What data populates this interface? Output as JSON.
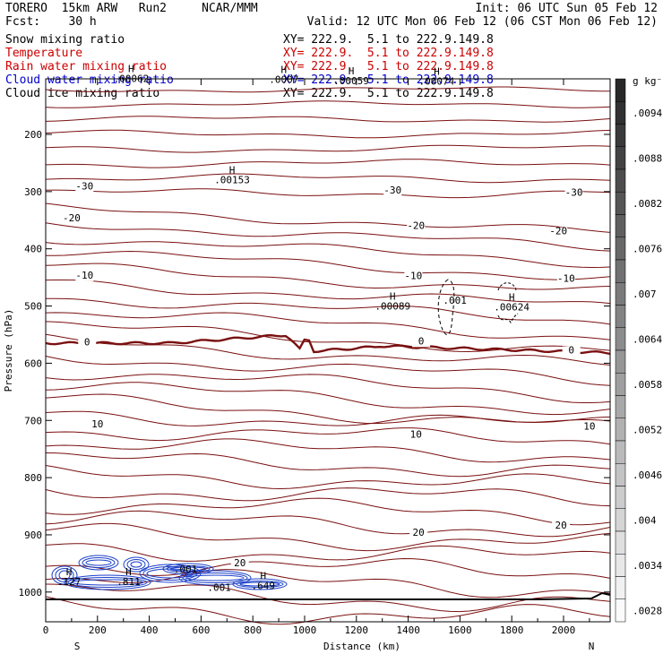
{
  "header": {
    "model": "TORERO  15km ARW   Run2     NCAR/MMM",
    "init": "Init: 06 UTC Sun 05 Feb 12",
    "fcst": "Fcst:    30 h",
    "valid": "Valid: 12 UTC Mon 06 Feb 12 (06 CST Mon 06 Feb 12)",
    "fields": [
      {
        "label": "Snow mixing ratio",
        "xy": "XY= 222.9.  5.1 to 222.9.149.8",
        "color": "#000000"
      },
      {
        "label": "Temperature",
        "xy": "XY= 222.9.  5.1 to 222.9.149.8",
        "color": "#cc0000"
      },
      {
        "label": "Rain water mixing ratio",
        "xy": "XY= 222.9.  5.1 to 222.9.149.8",
        "color": "#cc0000"
      },
      {
        "label": "Cloud water mixing ratio",
        "xy": "XY= 222.9.  5.1 to 222.9.149.8",
        "color": "#0000cc"
      },
      {
        "label": "Cloud ice mixing ratio",
        "xy": "XY= 222.9.  5.1 to 222.9.149.8",
        "color": "#000000"
      }
    ]
  },
  "chart_data": {
    "type": "contour",
    "xlabel": "Distance (km)",
    "ylabel": "Pressure (hPa)",
    "xlim": [
      0,
      2180
    ],
    "ylim": [
      1050,
      100
    ],
    "x_ticks": [
      0,
      200,
      400,
      600,
      800,
      1000,
      1200,
      1400,
      1600,
      1800,
      2000
    ],
    "y_ticks": [
      200,
      300,
      400,
      500,
      600,
      700,
      800,
      900,
      1000
    ],
    "x_end_labels": {
      "left": "S",
      "right": "N"
    },
    "temperature_labels": [
      {
        "text": "-30",
        "x": 150,
        "p": 296
      },
      {
        "text": "-30",
        "x": 1340,
        "p": 303
      },
      {
        "text": "-30",
        "x": 2040,
        "p": 307
      },
      {
        "text": "-20",
        "x": 100,
        "p": 352
      },
      {
        "text": "-20",
        "x": 1430,
        "p": 365
      },
      {
        "text": "-20",
        "x": 1980,
        "p": 375
      },
      {
        "text": "-10",
        "x": 150,
        "p": 452
      },
      {
        "text": "-10",
        "x": 1420,
        "p": 453
      },
      {
        "text": "-10",
        "x": 2010,
        "p": 458
      },
      {
        "text": "0",
        "x": 160,
        "p": 569
      },
      {
        "text": "0",
        "x": 1450,
        "p": 567
      },
      {
        "text": "0",
        "x": 2030,
        "p": 583
      },
      {
        "text": "10",
        "x": 200,
        "p": 712
      },
      {
        "text": "10",
        "x": 1430,
        "p": 730
      },
      {
        "text": "10",
        "x": 2100,
        "p": 716
      },
      {
        "text": "20",
        "x": 750,
        "p": 955
      },
      {
        "text": "20",
        "x": 1440,
        "p": 902
      },
      {
        "text": "20",
        "x": 1990,
        "p": 889
      }
    ],
    "extrema": [
      {
        "text": "H",
        "value": ".00062",
        "x": 330,
        "p": 108
      },
      {
        "text": "H",
        "value": ".0007",
        "x": 920,
        "p": 110
      },
      {
        "text": "H",
        "value": ".00059",
        "x": 1180,
        "p": 112
      },
      {
        "text": "H",
        "value": ".00074",
        "x": 1510,
        "p": 113
      },
      {
        "text": "H",
        "value": ".00153",
        "x": 720,
        "p": 285
      },
      {
        "text": "H",
        "value": ".00089",
        "x": 1340,
        "p": 506
      },
      {
        "text": "",
        "value": ".001",
        "x": 1580,
        "p": 496
      },
      {
        "text": "H",
        "value": ".00624",
        "x": 1800,
        "p": 508
      },
      {
        "text": "",
        "value": ".001",
        "x": 540,
        "p": 966
      },
      {
        "text": "H",
        "value": ".127",
        "x": 90,
        "p": 988
      },
      {
        "text": "H",
        "value": ".811",
        "x": 320,
        "p": 988
      },
      {
        "text": "",
        "value": ".001",
        "x": 670,
        "p": 998
      },
      {
        "text": "H",
        "value": ".649",
        "x": 840,
        "p": 995
      }
    ],
    "colorbar": {
      "unit": "g kg⁻¹",
      "tick_labels": [
        ".0094",
        ".0088",
        ".0082",
        ".0076",
        ".007",
        ".0064",
        ".0058",
        ".0052",
        ".0046",
        ".004",
        ".0034",
        ".0028"
      ],
      "levels": [
        ".0097",
        ".0094",
        ".0091",
        ".0088",
        ".0085",
        ".0082",
        ".0079",
        ".0076",
        ".0073",
        ".007",
        ".0067",
        ".0064",
        ".0061",
        ".0058",
        ".0055",
        ".0052",
        ".0049",
        ".0046",
        ".0043",
        ".004",
        ".0037",
        ".0034",
        ".0031",
        ".0028"
      ]
    },
    "colors": {
      "temperature": "#7a1010",
      "cloud_water": "#1a3fc8",
      "axes": "#000000"
    }
  }
}
